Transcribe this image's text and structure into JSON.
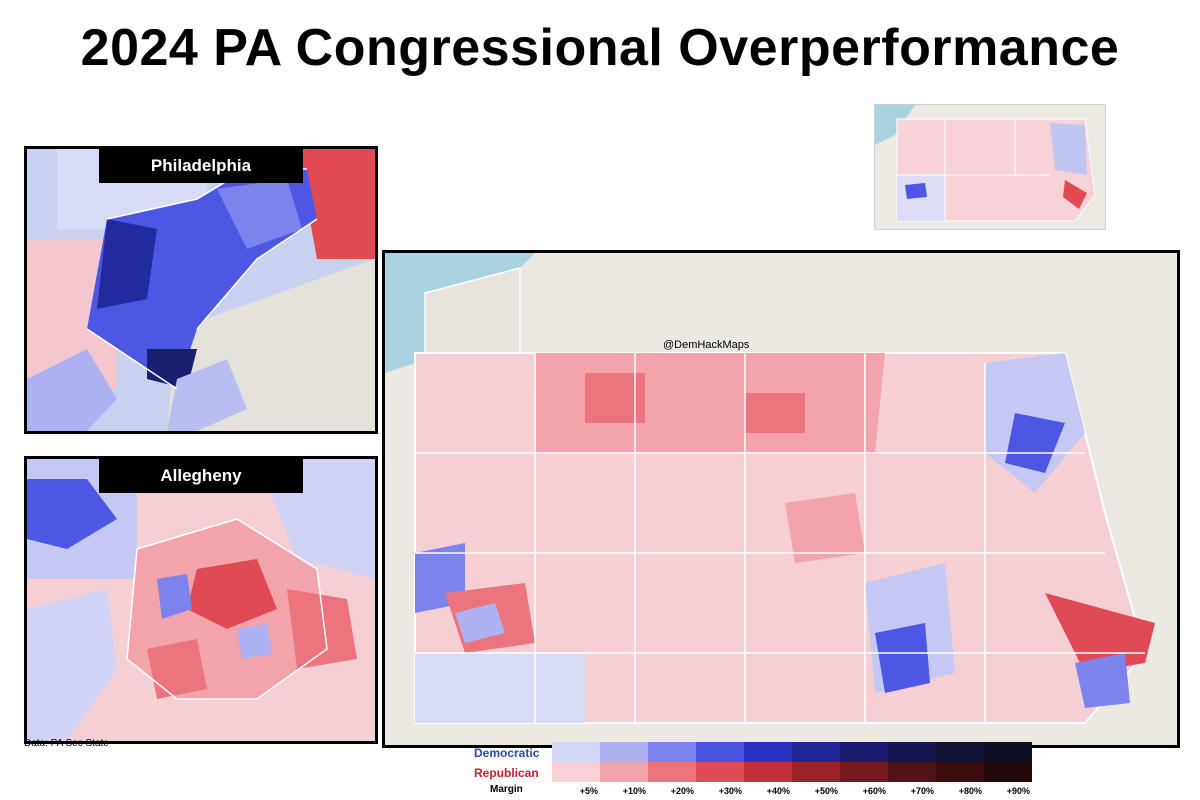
{
  "title": "2024 PA Congressional Overperformance",
  "insets": {
    "philadelphia": "Philadelphia",
    "allegheny": "Allegheny"
  },
  "watermark": "@DemHackMaps",
  "credit": "Data: PA Sec State",
  "legend": {
    "dem_label": "Democratic",
    "rep_label": "Republican",
    "margin_label": "Margin",
    "ticks": [
      "+5%",
      "+10%",
      "+20%",
      "+30%",
      "+40%",
      "+50%",
      "+60%",
      "+70%",
      "+80%",
      "+90%"
    ],
    "dem_colors": [
      "#d5d7f7",
      "#aeb2f2",
      "#7c83ec",
      "#4a52e2",
      "#2b31c2",
      "#222596",
      "#1a1c6f",
      "#15164f",
      "#121236",
      "#0e0e22"
    ],
    "rep_colors": [
      "#f8d0d6",
      "#f2a3ab",
      "#ec747f",
      "#e04a55",
      "#c22f37",
      "#992227",
      "#74191d",
      "#531215",
      "#3a0c0e",
      "#240708"
    ],
    "dem_color": "#2b4aa8",
    "rep_color": "#c8202f"
  }
}
